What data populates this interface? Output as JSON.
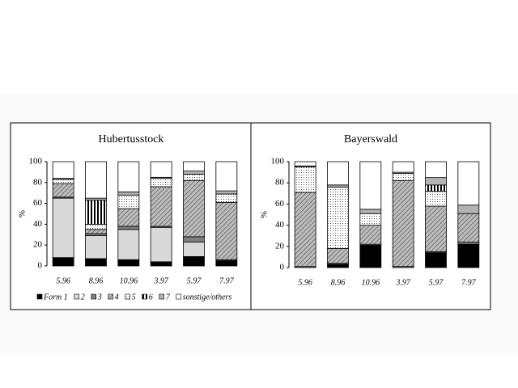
{
  "chart_data": [
    {
      "type": "bar",
      "stacked": true,
      "title": "Hubertusstock",
      "y_label": "%",
      "categories": [
        "5.96",
        "8.96",
        "10.96",
        "3.97",
        "5.97",
        "7.97"
      ],
      "ylim": [
        0,
        100
      ],
      "yticks": [
        0,
        20,
        40,
        60,
        80,
        100
      ],
      "series": [
        {
          "name": "Form 1",
          "color": "#000000",
          "values": [
            8,
            7,
            6,
            4,
            9,
            5
          ]
        },
        {
          "name": "2",
          "color": "#d9d9d9",
          "values": [
            57,
            22,
            29,
            33,
            14,
            0
          ]
        },
        {
          "name": "3",
          "color": "#7f7f7f",
          "values": [
            1,
            2,
            3,
            1,
            5,
            1
          ]
        },
        {
          "name": "4",
          "color": "#a6a6a6",
          "values": [
            13,
            4,
            17,
            38,
            54,
            55
          ]
        },
        {
          "name": "5",
          "color": "#ffffff",
          "values": [
            4,
            5,
            13,
            8,
            6,
            8
          ]
        },
        {
          "name": "6",
          "color": "#ffffff",
          "values": [
            0,
            23,
            0,
            0,
            0,
            0
          ]
        },
        {
          "name": "7",
          "color": "#b3b3b3",
          "values": [
            1,
            2,
            3,
            1,
            3,
            3
          ]
        },
        {
          "name": "sonstige/others",
          "color": "#ffffff",
          "values": [
            16,
            35,
            29,
            15,
            9,
            28
          ]
        }
      ]
    },
    {
      "type": "bar",
      "stacked": true,
      "title": "Bayerswald",
      "y_label": "%",
      "categories": [
        "5.96",
        "8.96",
        "10.96",
        "3.97",
        "5.97",
        "7.97"
      ],
      "ylim": [
        0,
        100
      ],
      "yticks": [
        0,
        20,
        40,
        60,
        80,
        100
      ],
      "series": [
        {
          "color": "#000000",
          "values": [
            0,
            3,
            21,
            0,
            14,
            22
          ]
        },
        {
          "color": "#d9d9d9",
          "values": [
            0,
            0,
            0,
            0,
            0,
            0
          ]
        },
        {
          "color": "#7f7f7f",
          "values": [
            1,
            1,
            1,
            1,
            1,
            2
          ]
        },
        {
          "color": "#a6a6a6",
          "values": [
            70,
            14,
            18,
            81,
            43,
            27
          ]
        },
        {
          "color": "#ffffff",
          "values": [
            24,
            58,
            11,
            7,
            14,
            0
          ]
        },
        {
          "color": "#ffffff",
          "values": [
            0,
            0,
            0,
            0,
            6,
            0
          ]
        },
        {
          "color": "#b3b3b3",
          "values": [
            1,
            2,
            4,
            1,
            7,
            8
          ]
        },
        {
          "color": "#ffffff",
          "values": [
            4,
            22,
            45,
            10,
            15,
            41
          ]
        }
      ]
    }
  ]
}
